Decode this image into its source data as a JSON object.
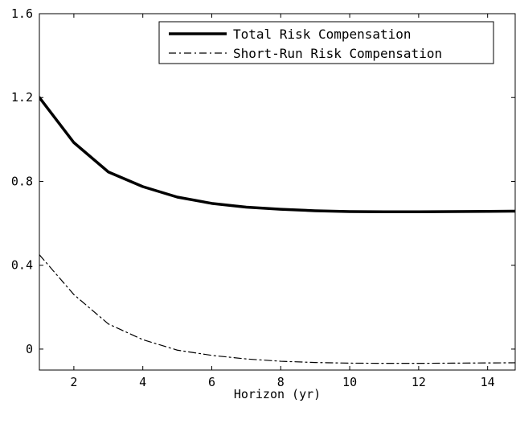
{
  "chart_data": {
    "type": "line",
    "title": "",
    "xlabel": "Horizon (yr)",
    "ylabel": "",
    "xlim": [
      1,
      14.8
    ],
    "ylim": [
      -0.1,
      1.6
    ],
    "xticks": [
      2,
      4,
      6,
      8,
      10,
      12,
      14
    ],
    "yticks": [
      0,
      0.4,
      0.8,
      1.2,
      1.6
    ],
    "ytick_labels": [
      "0",
      "0.4",
      "0.8",
      "1.2",
      "1.6"
    ],
    "grid": false,
    "legend_position": "top-right",
    "series": [
      {
        "name": "Total Risk Compensation",
        "style": "solid",
        "color": "#000000",
        "x": [
          1,
          2,
          3,
          4,
          5,
          6,
          7,
          8,
          9,
          10,
          11,
          12,
          13,
          14,
          15
        ],
        "y": [
          1.2,
          0.985,
          0.845,
          0.775,
          0.725,
          0.695,
          0.677,
          0.667,
          0.66,
          0.656,
          0.655,
          0.655,
          0.656,
          0.657,
          0.658
        ]
      },
      {
        "name": "Short-Run Risk Compensation",
        "style": "dashdot",
        "color": "#000000",
        "x": [
          1,
          2,
          3,
          4,
          5,
          6,
          7,
          8,
          9,
          10,
          11,
          12,
          13,
          14,
          15
        ],
        "y": [
          0.45,
          0.26,
          0.12,
          0.045,
          -0.005,
          -0.03,
          -0.047,
          -0.058,
          -0.064,
          -0.067,
          -0.068,
          -0.068,
          -0.067,
          -0.066,
          -0.065
        ]
      }
    ]
  }
}
